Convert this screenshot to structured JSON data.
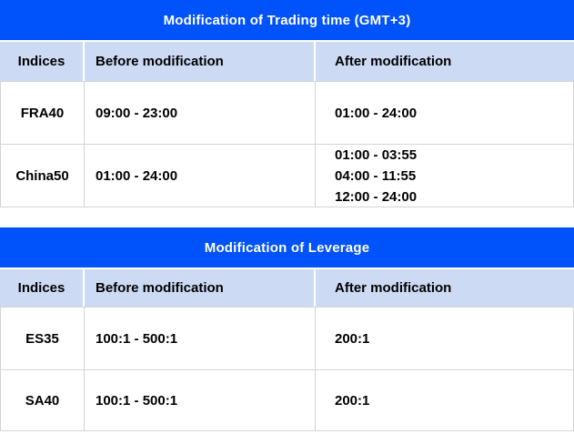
{
  "tables": [
    {
      "title": "Modification of Trading time (GMT+3)",
      "columns": [
        "Indices",
        "Before modification",
        "After modification"
      ],
      "rows": [
        {
          "index": "FRA40",
          "before": "09:00 - 23:00",
          "after": "01:00 - 24:00"
        },
        {
          "index": "China50",
          "before": "01:00 - 24:00",
          "after": "01:00 - 03:55\n04:00 - 11:55\n12:00 - 24:00"
        }
      ]
    },
    {
      "title": "Modification of Leverage",
      "columns": [
        "Indices",
        "Before modification",
        "After modification"
      ],
      "rows": [
        {
          "index": "ES35",
          "before": "100:1 - 500:1",
          "after": "200:1"
        },
        {
          "index": "SA40",
          "before": "100:1 - 500:1",
          "after": "200:1"
        }
      ]
    }
  ],
  "colors": {
    "header_blue": "#0052FA",
    "header_light_blue": "#CDDAF4",
    "border_gray": "#D4D4D4",
    "title_text": "#FFFFFF",
    "body_text": "#000000"
  }
}
